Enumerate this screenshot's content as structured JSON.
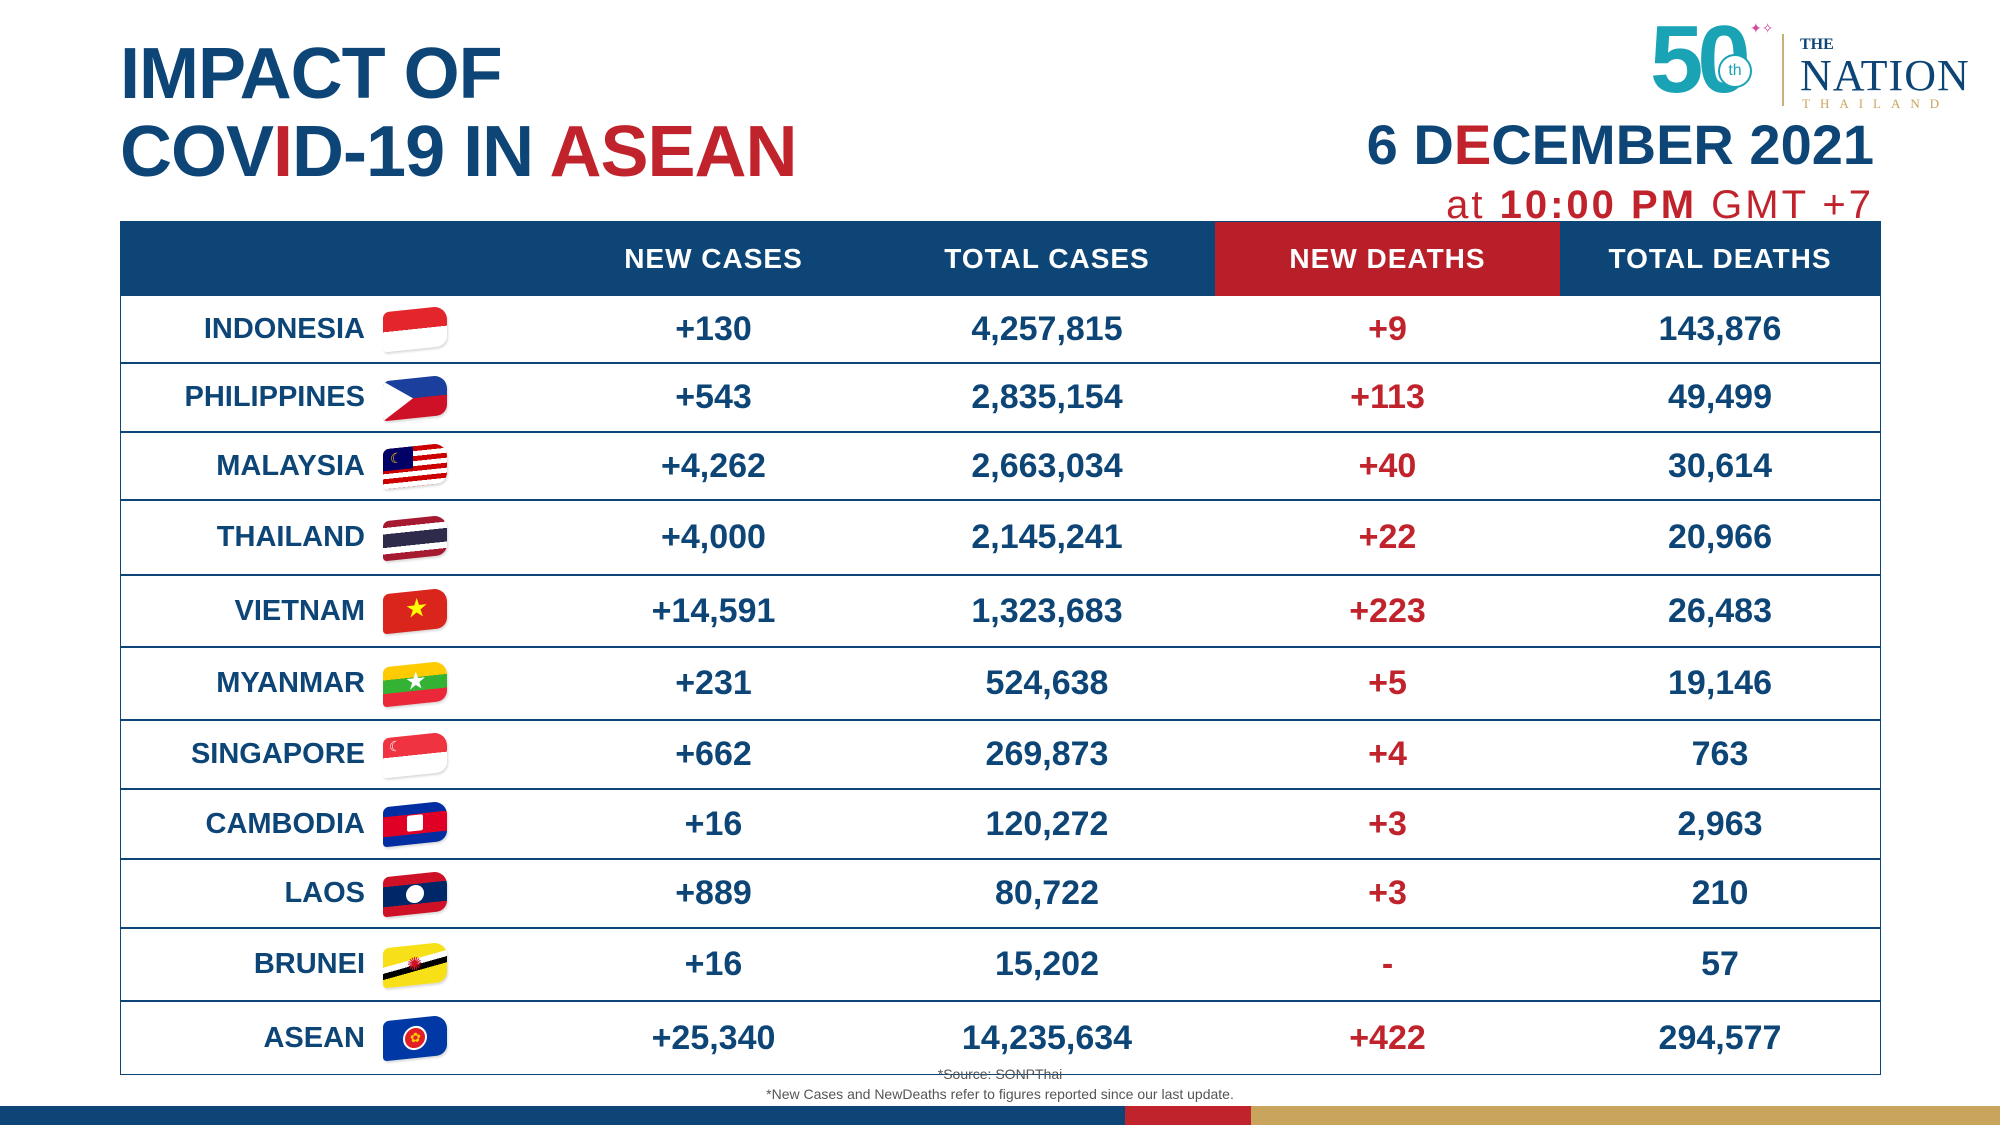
{
  "title": {
    "line1": "IMPACT OF",
    "line2_pre": "COV",
    "line2_i": "I",
    "line2_mid": "D-19 IN ",
    "line2_red": "ASEAN"
  },
  "date": {
    "d_pre": "6 D",
    "d_e": "E",
    "d_post": "CEMBER 2021",
    "time_pre": "at ",
    "time_bold": "10:00 PM",
    "time_post": " GMT +7"
  },
  "logo": {
    "number": "50",
    "suffix": "th",
    "the": "THE",
    "name": "NATION",
    "sub": "THAILAND"
  },
  "table": {
    "headers": [
      "",
      "NEW CASES",
      "TOTAL CASES",
      "NEW DEATHS",
      "TOTAL DEATHS"
    ],
    "rows": [
      {
        "country": "INDONESIA",
        "new_cases": "+130",
        "total_cases": "4,257,815",
        "new_deaths": "+9",
        "total_deaths": "143,876",
        "flag": "indonesia-flag"
      },
      {
        "country": "PHILIPPINES",
        "new_cases": "+543",
        "total_cases": "2,835,154",
        "new_deaths": "+113",
        "total_deaths": "49,499",
        "flag": "philippines-flag"
      },
      {
        "country": "MALAYSIA",
        "new_cases": "+4,262",
        "total_cases": "2,663,034",
        "new_deaths": "+40",
        "total_deaths": "30,614",
        "flag": "malaysia-flag"
      },
      {
        "country": "THAILAND",
        "new_cases": "+4,000",
        "total_cases": "2,145,241",
        "new_deaths": "+22",
        "total_deaths": "20,966",
        "flag": "thailand-flag"
      },
      {
        "country": "VIETNAM",
        "new_cases": "+14,591",
        "total_cases": "1,323,683",
        "new_deaths": "+223",
        "total_deaths": "26,483",
        "flag": "vietnam-flag"
      },
      {
        "country": "MYANMAR",
        "new_cases": "+231",
        "total_cases": "524,638",
        "new_deaths": "+5",
        "total_deaths": "19,146",
        "flag": "myanmar-flag"
      },
      {
        "country": "SINGAPORE",
        "new_cases": "+662",
        "total_cases": "269,873",
        "new_deaths": "+4",
        "total_deaths": "763",
        "flag": "singapore-flag"
      },
      {
        "country": "CAMBODIA",
        "new_cases": "+16",
        "total_cases": "120,272",
        "new_deaths": "+3",
        "total_deaths": "2,963",
        "flag": "cambodia-flag"
      },
      {
        "country": "LAOS",
        "new_cases": "+889",
        "total_cases": "80,722",
        "new_deaths": "+3",
        "total_deaths": "210",
        "flag": "laos-flag"
      },
      {
        "country": "BRUNEI",
        "new_cases": "+16",
        "total_cases": "15,202",
        "new_deaths": "-",
        "total_deaths": "57",
        "flag": "brunei-flag"
      },
      {
        "country": "ASEAN",
        "new_cases": "+25,340",
        "total_cases": "14,235,634",
        "new_deaths": "+422",
        "total_deaths": "294,577",
        "flag": "asean-flag"
      }
    ]
  },
  "footer": {
    "source": "*Source: SONPThai",
    "note": "*New Cases and NewDeaths refer to figures reported since our last update."
  },
  "colors": {
    "navy": "#0d4577",
    "red": "#c0232c",
    "gold": "#c9a45c"
  }
}
